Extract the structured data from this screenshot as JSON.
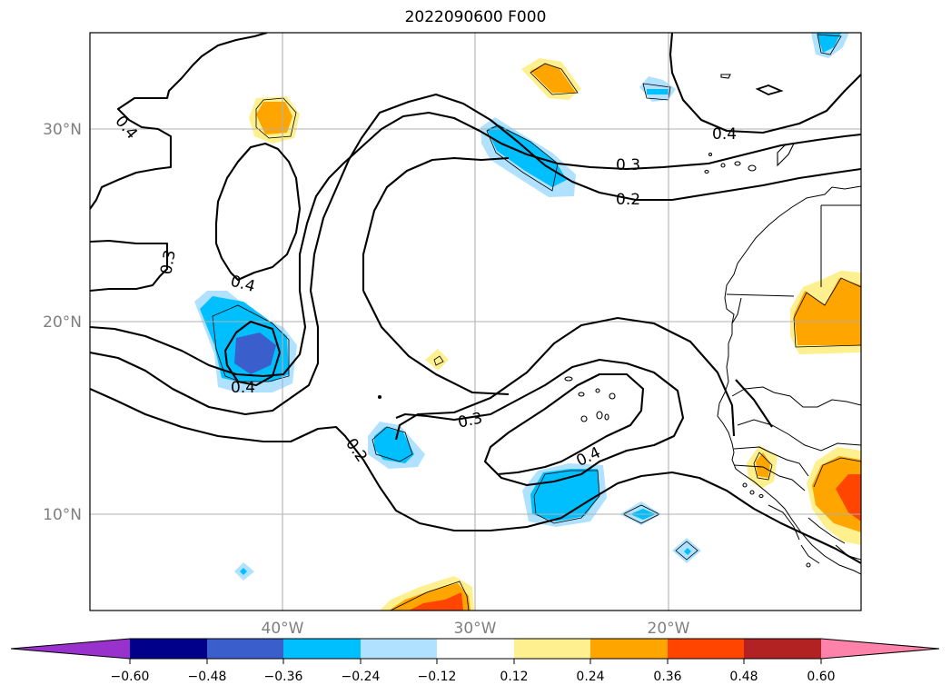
{
  "title": "2022090600 F000",
  "map": {
    "lat_labels": [
      "30°N",
      "20°N",
      "10°N"
    ],
    "lon_labels": [
      "40°W",
      "30°W",
      "20°W"
    ],
    "contour_labels": [
      "0.4",
      "0.3",
      "0.4",
      "0.4",
      "0.2",
      "0.3",
      "0.4",
      "0.4",
      "0.3",
      "0.2"
    ]
  },
  "colorbar": {
    "ticks": [
      "−0.60",
      "−0.48",
      "−0.36",
      "−0.24",
      "−0.12",
      "0.12",
      "0.24",
      "0.36",
      "0.48",
      "0.60"
    ],
    "colors": {
      "lt_-0.60": "#9932cc",
      "-0.60_-0.48": "#00008b",
      "-0.48_-0.36": "#3a5fcd",
      "-0.36_-0.24": "#00bfff",
      "-0.24_-0.12": "#b0e2ff",
      "-0.12_0.12": "#ffffff",
      "0.12_0.24": "#fff08f",
      "0.24_0.36": "#ffa500",
      "0.36_0.48": "#ff4500",
      "0.48_0.60": "#b22222",
      "gt_0.60": "#ff82ab"
    }
  }
}
